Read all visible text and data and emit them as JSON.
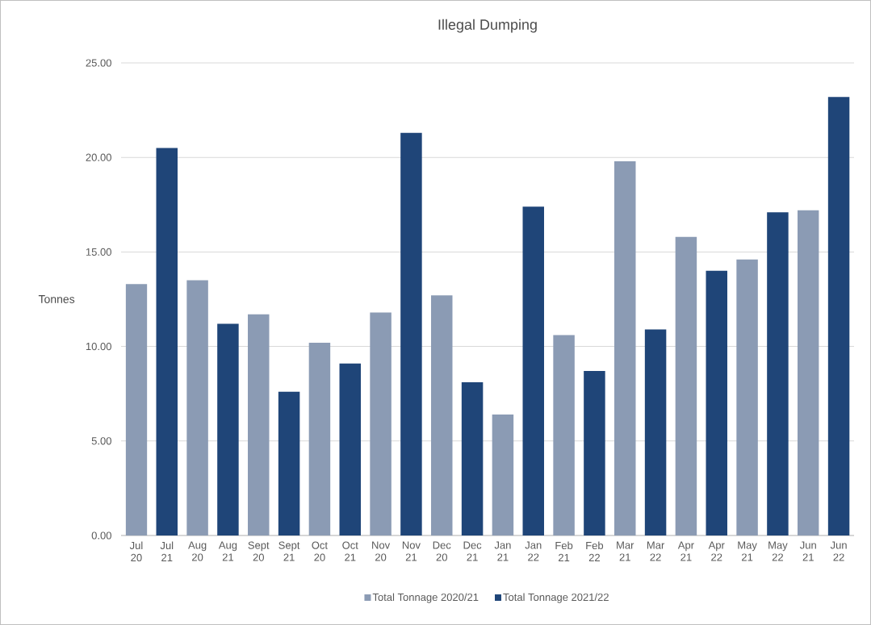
{
  "chart_data": {
    "type": "bar",
    "title": "Illegal Dumping",
    "ylabel": "Tonnes",
    "categories": [
      "Jul 20",
      "Jul 21",
      "Aug 20",
      "Aug 21",
      "Sept 20",
      "Sept 21",
      "Oct 20",
      "Oct 21",
      "Nov 20",
      "Nov 21",
      "Dec 20",
      "Dec 21",
      "Jan 21",
      "Jan 22",
      "Feb 21",
      "Feb 22",
      "Mar 21",
      "Mar 22",
      "Apr 21",
      "Apr 22",
      "May 21",
      "May 22",
      "Jun 21",
      "Jun 22"
    ],
    "series": [
      {
        "name": "Total Tonnage 2020/21",
        "color": "#8b9bb4",
        "values": [
          13.3,
          null,
          13.5,
          null,
          11.7,
          null,
          10.2,
          null,
          11.8,
          null,
          12.7,
          null,
          6.4,
          null,
          10.6,
          null,
          19.8,
          null,
          15.8,
          null,
          14.6,
          null,
          17.2,
          null
        ]
      },
      {
        "name": "Total Tonnage 2021/22",
        "color": "#1f4578",
        "values": [
          null,
          20.5,
          null,
          11.2,
          null,
          7.6,
          null,
          9.1,
          null,
          21.3,
          null,
          8.1,
          null,
          17.4,
          null,
          8.7,
          null,
          10.9,
          null,
          14.0,
          null,
          17.1,
          null,
          23.2
        ]
      }
    ],
    "ylim": [
      0,
      25
    ],
    "yticks": [
      {
        "value": 0,
        "label": "0.00"
      },
      {
        "value": 5,
        "label": "5.00"
      },
      {
        "value": 10,
        "label": "10.00"
      },
      {
        "value": 15,
        "label": "15.00"
      },
      {
        "value": 20,
        "label": "20.00"
      },
      {
        "value": 25,
        "label": "25.00"
      }
    ],
    "grid": "y",
    "legend": "bottom"
  }
}
